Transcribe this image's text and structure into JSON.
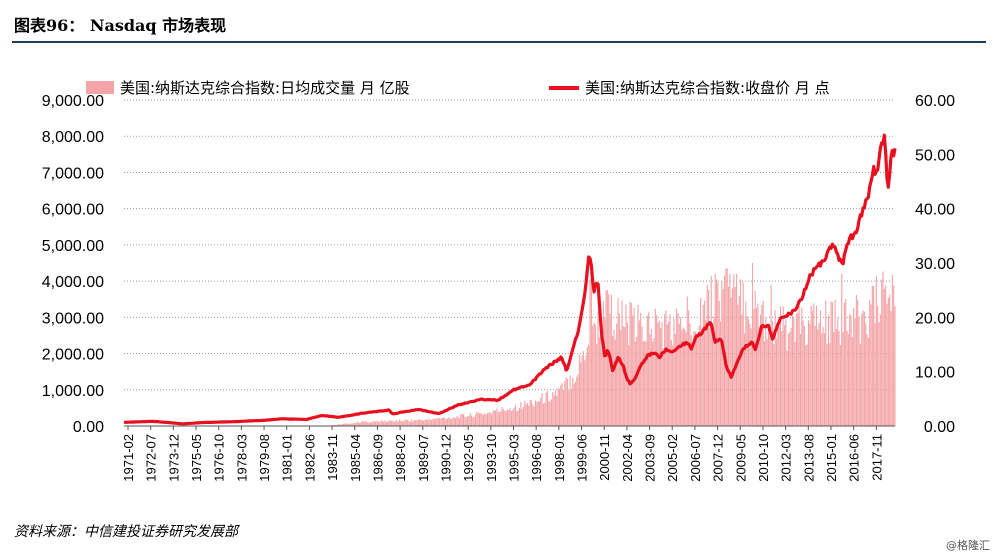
{
  "header": {
    "title": "图表96：   Nasdaq 市场表现"
  },
  "footer": {
    "source": "资料来源：中信建投证券研究发展部",
    "watermark": "@格隆汇"
  },
  "colors": {
    "volume": "#f4a3a6",
    "close": "#e8101e",
    "rule": "#1f3b5c",
    "grid": "#9a9a9a"
  },
  "chart_data": {
    "type": "bar+line",
    "legend_position": "top",
    "grid": true,
    "series": [
      {
        "name": "美国:纳斯达克综合指数:日均成交量  月  亿股",
        "type": "bar",
        "axis": "right",
        "points": [
          [
            1971.1,
            0
          ],
          [
            1984.0,
            0.1
          ],
          [
            1986.0,
            0.8
          ],
          [
            1988.0,
            1.0
          ],
          [
            1990.0,
            1.2
          ],
          [
            1992.0,
            1.8
          ],
          [
            1994.0,
            2.6
          ],
          [
            1996.0,
            4.0
          ],
          [
            1997.5,
            5.5
          ],
          [
            1998.5,
            7.0
          ],
          [
            1999.5,
            11.0
          ],
          [
            2000.2,
            17.5
          ],
          [
            2000.8,
            20.0
          ],
          [
            2001.5,
            22.0
          ],
          [
            2002.5,
            20.0
          ],
          [
            2003.5,
            19.0
          ],
          [
            2004.5,
            19.5
          ],
          [
            2005.5,
            19.0
          ],
          [
            2006.5,
            21.0
          ],
          [
            2007.5,
            23.0
          ],
          [
            2008.3,
            25.0
          ],
          [
            2008.9,
            27.0
          ],
          [
            2009.5,
            24.0
          ],
          [
            2010.3,
            23.0
          ],
          [
            2011.3,
            21.0
          ],
          [
            2012.3,
            19.0
          ],
          [
            2013.3,
            19.0
          ],
          [
            2014.3,
            20.0
          ],
          [
            2015.3,
            20.0
          ],
          [
            2016.3,
            20.0
          ],
          [
            2017.3,
            21.0
          ],
          [
            2018.3,
            24.0
          ],
          [
            2018.6,
            25.0
          ]
        ],
        "peaks": [
          [
            2000.3,
            27.0
          ],
          [
            2001.3,
            25.0
          ],
          [
            2007.6,
            26.0
          ],
          [
            2008.1,
            28.0
          ],
          [
            2008.8,
            29.0
          ],
          [
            2010.4,
            30.0
          ],
          [
            2011.6,
            26.0
          ],
          [
            2016.0,
            28.0
          ],
          [
            2018.5,
            27.0
          ]
        ]
      },
      {
        "name": "美国:纳斯达克综合指数:收盘价  月  点",
        "type": "line",
        "axis": "left",
        "points": [
          [
            1971.1,
            100
          ],
          [
            1972.9,
            130
          ],
          [
            1974.8,
            60
          ],
          [
            1976.0,
            95
          ],
          [
            1978.0,
            120
          ],
          [
            1980.0,
            160
          ],
          [
            1981.0,
            200
          ],
          [
            1982.5,
            180
          ],
          [
            1983.5,
            290
          ],
          [
            1984.5,
            240
          ],
          [
            1986.0,
            350
          ],
          [
            1987.7,
            440
          ],
          [
            1987.9,
            330
          ],
          [
            1989.5,
            460
          ],
          [
            1990.8,
            340
          ],
          [
            1992.0,
            580
          ],
          [
            1993.5,
            740
          ],
          [
            1994.5,
            710
          ],
          [
            1995.5,
            1000
          ],
          [
            1996.5,
            1150
          ],
          [
            1997.5,
            1600
          ],
          [
            1998.5,
            1900
          ],
          [
            1998.8,
            1500
          ],
          [
            1999.5,
            2600
          ],
          [
            1999.9,
            3500
          ],
          [
            2000.2,
            4700
          ],
          [
            2000.35,
            4400
          ],
          [
            2000.5,
            3700
          ],
          [
            2000.75,
            4100
          ],
          [
            2000.9,
            3000
          ],
          [
            2001.0,
            2500
          ],
          [
            2001.2,
            1900
          ],
          [
            2001.4,
            2100
          ],
          [
            2001.7,
            1500
          ],
          [
            2002.0,
            1900
          ],
          [
            2002.3,
            1700
          ],
          [
            2002.6,
            1300
          ],
          [
            2002.8,
            1150
          ],
          [
            2003.1,
            1350
          ],
          [
            2003.5,
            1700
          ],
          [
            2003.9,
            1950
          ],
          [
            2004.3,
            2000
          ],
          [
            2004.6,
            1900
          ],
          [
            2005.0,
            2100
          ],
          [
            2005.5,
            2050
          ],
          [
            2005.9,
            2200
          ],
          [
            2006.3,
            2300
          ],
          [
            2006.6,
            2150
          ],
          [
            2006.9,
            2450
          ],
          [
            2007.4,
            2650
          ],
          [
            2007.8,
            2850
          ],
          [
            2008.1,
            2350
          ],
          [
            2008.5,
            2400
          ],
          [
            2008.8,
            1600
          ],
          [
            2009.1,
            1350
          ],
          [
            2009.5,
            1800
          ],
          [
            2009.9,
            2150
          ],
          [
            2010.4,
            2300
          ],
          [
            2010.6,
            2100
          ],
          [
            2011.0,
            2750
          ],
          [
            2011.4,
            2800
          ],
          [
            2011.7,
            2400
          ],
          [
            2012.2,
            3000
          ],
          [
            2012.7,
            3100
          ],
          [
            2013.0,
            3150
          ],
          [
            2013.6,
            3600
          ],
          [
            2014.0,
            4150
          ],
          [
            2014.5,
            4400
          ],
          [
            2015.0,
            4650
          ],
          [
            2015.5,
            5050
          ],
          [
            2015.7,
            4700
          ],
          [
            2016.1,
            4550
          ],
          [
            2016.5,
            5150
          ],
          [
            2016.9,
            5380
          ],
          [
            2017.3,
            5900
          ],
          [
            2017.7,
            6400
          ],
          [
            2018.0,
            7100
          ],
          [
            2018.2,
            6950
          ],
          [
            2018.5,
            7750
          ],
          [
            2018.7,
            8050
          ],
          [
            2018.85,
            6950
          ],
          [
            2018.95,
            6650
          ],
          [
            2019.1,
            7400
          ],
          [
            2019.3,
            7600
          ]
        ]
      }
    ],
    "y_left": {
      "min": 0,
      "max": 9000,
      "ticks": [
        "0.00",
        "1,000.00",
        "2,000.00",
        "3,000.00",
        "4,000.00",
        "5,000.00",
        "6,000.00",
        "7,000.00",
        "8,000.00",
        "9,000.00"
      ]
    },
    "y_right": {
      "min": 0,
      "max": 60,
      "ticks": [
        "0.00",
        "10.00",
        "20.00",
        "30.00",
        "40.00",
        "50.00",
        "60.00"
      ]
    },
    "x": {
      "min": 1971.1,
      "max": 2019.35,
      "tick_labels": [
        "1971-02",
        "1972-07",
        "1973-12",
        "1975-05",
        "1976-10",
        "1978-03",
        "1979-08",
        "1981-01",
        "1982-06",
        "1983-11",
        "1985-04",
        "1986-09",
        "1988-02",
        "1989-07",
        "1990-12",
        "1992-05",
        "1993-10",
        "1995-03",
        "1996-08",
        "1998-01",
        "1999-06",
        "2000-11",
        "2002-04",
        "2003-09",
        "2005-02",
        "2006-07",
        "2007-12",
        "2009-05",
        "2010-10",
        "2012-03",
        "2013-08",
        "2015-01",
        "2016-06",
        "2017-11"
      ]
    }
  }
}
